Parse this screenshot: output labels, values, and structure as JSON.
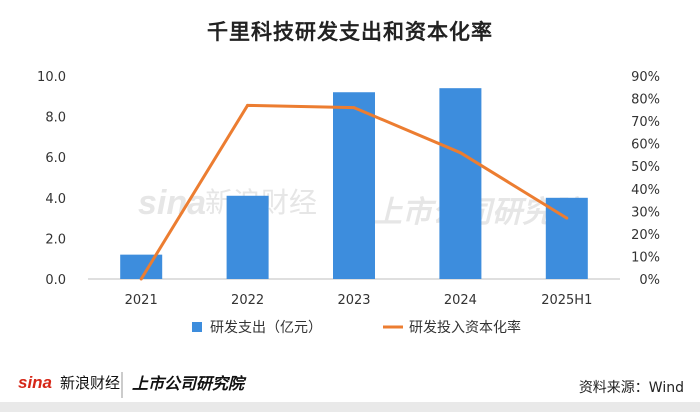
{
  "title": "千里科技研发支出和资本化率",
  "source": "资料来源：Wind",
  "watermark": {
    "sina_text": "新浪财经",
    "research_text": "上市公司研究院"
  },
  "chart_data": {
    "type": "bar",
    "categories": [
      "2021",
      "2022",
      "2023",
      "2024",
      "2025H1"
    ],
    "series": [
      {
        "name": "研发支出（亿元）",
        "type": "bar",
        "axis": "left",
        "color": "#3d8ddd",
        "values": [
          1.2,
          4.1,
          9.2,
          9.4,
          4.0
        ]
      },
      {
        "name": "研发投入资本化率",
        "type": "line",
        "axis": "right",
        "color": "#ec7d31",
        "values": [
          0,
          77,
          76,
          56,
          27
        ]
      }
    ],
    "left_axis": {
      "ylim": [
        0,
        10
      ],
      "ticks": [
        "0.0",
        "2.0",
        "4.0",
        "6.0",
        "8.0",
        "10.0"
      ]
    },
    "right_axis": {
      "ylim": [
        0,
        90
      ],
      "ticks": [
        "0%",
        "10%",
        "20%",
        "30%",
        "40%",
        "50%",
        "60%",
        "70%",
        "80%",
        "90%"
      ]
    },
    "grid": false,
    "legend_position": "bottom"
  }
}
